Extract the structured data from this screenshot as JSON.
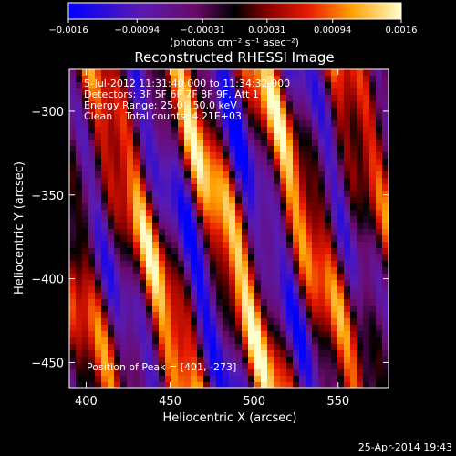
{
  "chart_data": {
    "type": "heatmap",
    "title": "Reconstructed RHESSI Image",
    "xlabel": "Heliocentric X (arcsec)",
    "ylabel": "Heliocentric Y (arcsec)",
    "xlim": [
      390,
      580
    ],
    "ylim": [
      -465,
      -275
    ],
    "x_ticks": [
      400,
      450,
      500,
      550
    ],
    "x_tick_labels": [
      "400",
      "450",
      "500",
      "550"
    ],
    "y_ticks": [
      -300,
      -350,
      -400,
      -450
    ],
    "y_tick_labels": [
      "−300",
      "−350",
      "−400",
      "−450"
    ],
    "colorbar": {
      "min": -0.0016,
      "max": 0.0016,
      "ticks": [
        -0.0016,
        -0.00094,
        -0.00031,
        0.00031,
        0.00094,
        0.0016
      ],
      "tick_labels": [
        "−0.0016",
        "−0.00094",
        "−0.00031",
        "0.00031",
        "0.00094",
        "0.0016"
      ],
      "unit_label": "(photons cm⁻² s⁻¹ asec⁻²)"
    },
    "info_lines": [
      "5-Jul-2012 11:31:40.000 to 11:34:32.000",
      "Detectors: 3F 5F 6F 7F 8F 9F, Att 1",
      "Energy Range: 25.0 - 50.0 keV",
      "Clean    Total counts: 4.21E+03"
    ],
    "peak_label": "Position of Peak = [401, -273]",
    "grid": false
  },
  "footer": {
    "timestamp": "25-Apr-2014 19:43"
  }
}
